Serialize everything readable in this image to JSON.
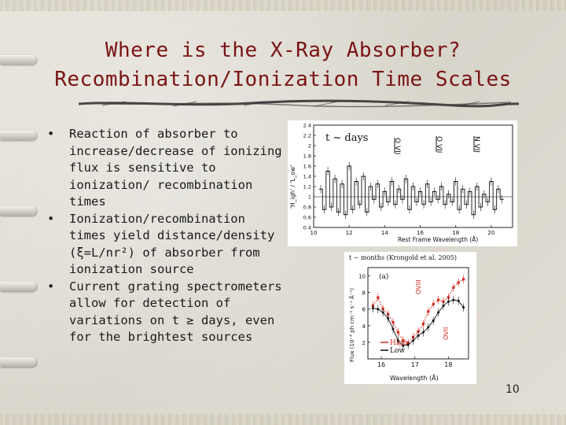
{
  "slide": {
    "title_line1": "Where is the X-Ray Absorber?",
    "title_line2": "Recombination/Ionization Time Scales",
    "bullets": [
      {
        "symbol": "•",
        "text": "Reaction of absorber to increase/decrease of ionizing flux is sensitive to ionization/ recombination times"
      },
      {
        "symbol": "•",
        "text": "Ionization/recombination times yield distance/density (ξ=L/nr²) of absorber from ionization source"
      },
      {
        "symbol": "•",
        "text": "Current grating spectrometers allow for detection of variations on t ≥ days, even for the brightest sources"
      }
    ],
    "page_number": "10"
  },
  "figures": {
    "top_plot": {
      "annotation": "t ~ days",
      "xlabel": "Rest Frame Wavelength (Å)",
      "ylabel": "'H_igh' / 'L_ow'",
      "x_ticks": [
        "10",
        "12",
        "14",
        "16",
        "18",
        "20"
      ],
      "y_ticks": [
        "2.4",
        "2.2",
        "2",
        "1.8",
        "1.6",
        "1.4",
        "1.2",
        "1",
        "0.8",
        "0.6",
        "0.4"
      ],
      "line_labels": [
        "O VII",
        "O VII",
        "N VII"
      ]
    },
    "bottom_plot": {
      "caption": "t ~ months (Krongold et al. 2005)",
      "panel_label": "(a)",
      "xlabel": "Wavelength (Å)",
      "ylabel": "Flux (10⁻⁴ ph cm⁻² s⁻¹ Å⁻¹)",
      "x_ticks": [
        "16",
        "17",
        "18"
      ],
      "y_ticks": [
        "10",
        "8",
        "6",
        "4",
        "2"
      ],
      "line_labels": [
        "OVIII",
        "OVII"
      ],
      "legend": [
        "High",
        "Low"
      ],
      "series_colors": [
        "#d42a1e",
        "#111111"
      ]
    }
  },
  "chart_data": [
    {
      "type": "line",
      "xlabel": "Rest Frame Wavelength (Å)",
      "ylabel": "'H_igh' / 'L_ow'",
      "xlim": [
        10,
        21.2
      ],
      "ylim": [
        0.4,
        2.4
      ],
      "x": [
        10.4,
        10.6,
        10.8,
        11.0,
        11.2,
        11.4,
        11.6,
        11.8,
        12.0,
        12.2,
        12.4,
        12.6,
        12.8,
        13.0,
        13.2,
        13.4,
        13.6,
        13.8,
        14.0,
        14.2,
        14.4,
        14.6,
        14.8,
        15.0,
        15.2,
        15.4,
        15.6,
        15.8,
        16.0,
        16.2,
        16.4,
        16.6,
        16.8,
        17.0,
        17.2,
        17.4,
        17.6,
        17.8,
        18.0,
        18.2,
        18.4,
        18.6,
        18.8,
        19.0,
        19.2,
        19.4,
        19.6,
        19.8,
        20.0,
        20.2,
        20.4,
        20.6
      ],
      "y": [
        1.15,
        0.75,
        1.5,
        0.8,
        1.35,
        0.7,
        1.25,
        0.65,
        1.6,
        0.75,
        1.3,
        0.85,
        1.4,
        0.7,
        1.2,
        0.95,
        1.25,
        0.8,
        1.1,
        0.9,
        1.3,
        0.85,
        1.15,
        0.95,
        1.35,
        0.75,
        1.2,
        0.9,
        1.1,
        0.85,
        1.25,
        0.9,
        1.1,
        0.95,
        1.2,
        0.85,
        1.05,
        0.9,
        1.3,
        0.75,
        1.15,
        0.85,
        1.1,
        0.65,
        1.2,
        0.8,
        1.05,
        0.9,
        1.3,
        0.75,
        1.15,
        0.95
      ]
    },
    {
      "type": "line",
      "xlabel": "Wavelength (Å)",
      "ylabel": "Flux (10⁻⁴ ph cm⁻² s⁻¹ Å⁻¹)",
      "xlim": [
        15.6,
        18.6
      ],
      "ylim": [
        0,
        11
      ],
      "series": [
        {
          "name": "High",
          "x": [
            15.75,
            15.9,
            16.05,
            16.2,
            16.35,
            16.5,
            16.65,
            16.8,
            16.95,
            17.1,
            17.25,
            17.4,
            17.55,
            17.7,
            17.85,
            18.0,
            18.15,
            18.3,
            18.45
          ],
          "y": [
            6.4,
            7.4,
            6.0,
            5.4,
            4.4,
            3.2,
            2.2,
            1.9,
            2.6,
            3.3,
            4.2,
            5.7,
            6.6,
            7.1,
            6.9,
            7.4,
            8.6,
            9.2,
            9.6
          ]
        },
        {
          "name": "Low",
          "x": [
            15.75,
            15.9,
            16.05,
            16.2,
            16.35,
            16.5,
            16.65,
            16.8,
            16.95,
            17.1,
            17.25,
            17.4,
            17.55,
            17.7,
            17.85,
            18.0,
            18.15,
            18.3,
            18.45
          ],
          "y": [
            6.1,
            6.0,
            5.6,
            4.9,
            3.6,
            2.2,
            1.6,
            1.7,
            2.2,
            2.8,
            3.2,
            3.8,
            4.6,
            5.6,
            6.4,
            6.9,
            7.1,
            7.0,
            6.2
          ]
        }
      ]
    }
  ]
}
